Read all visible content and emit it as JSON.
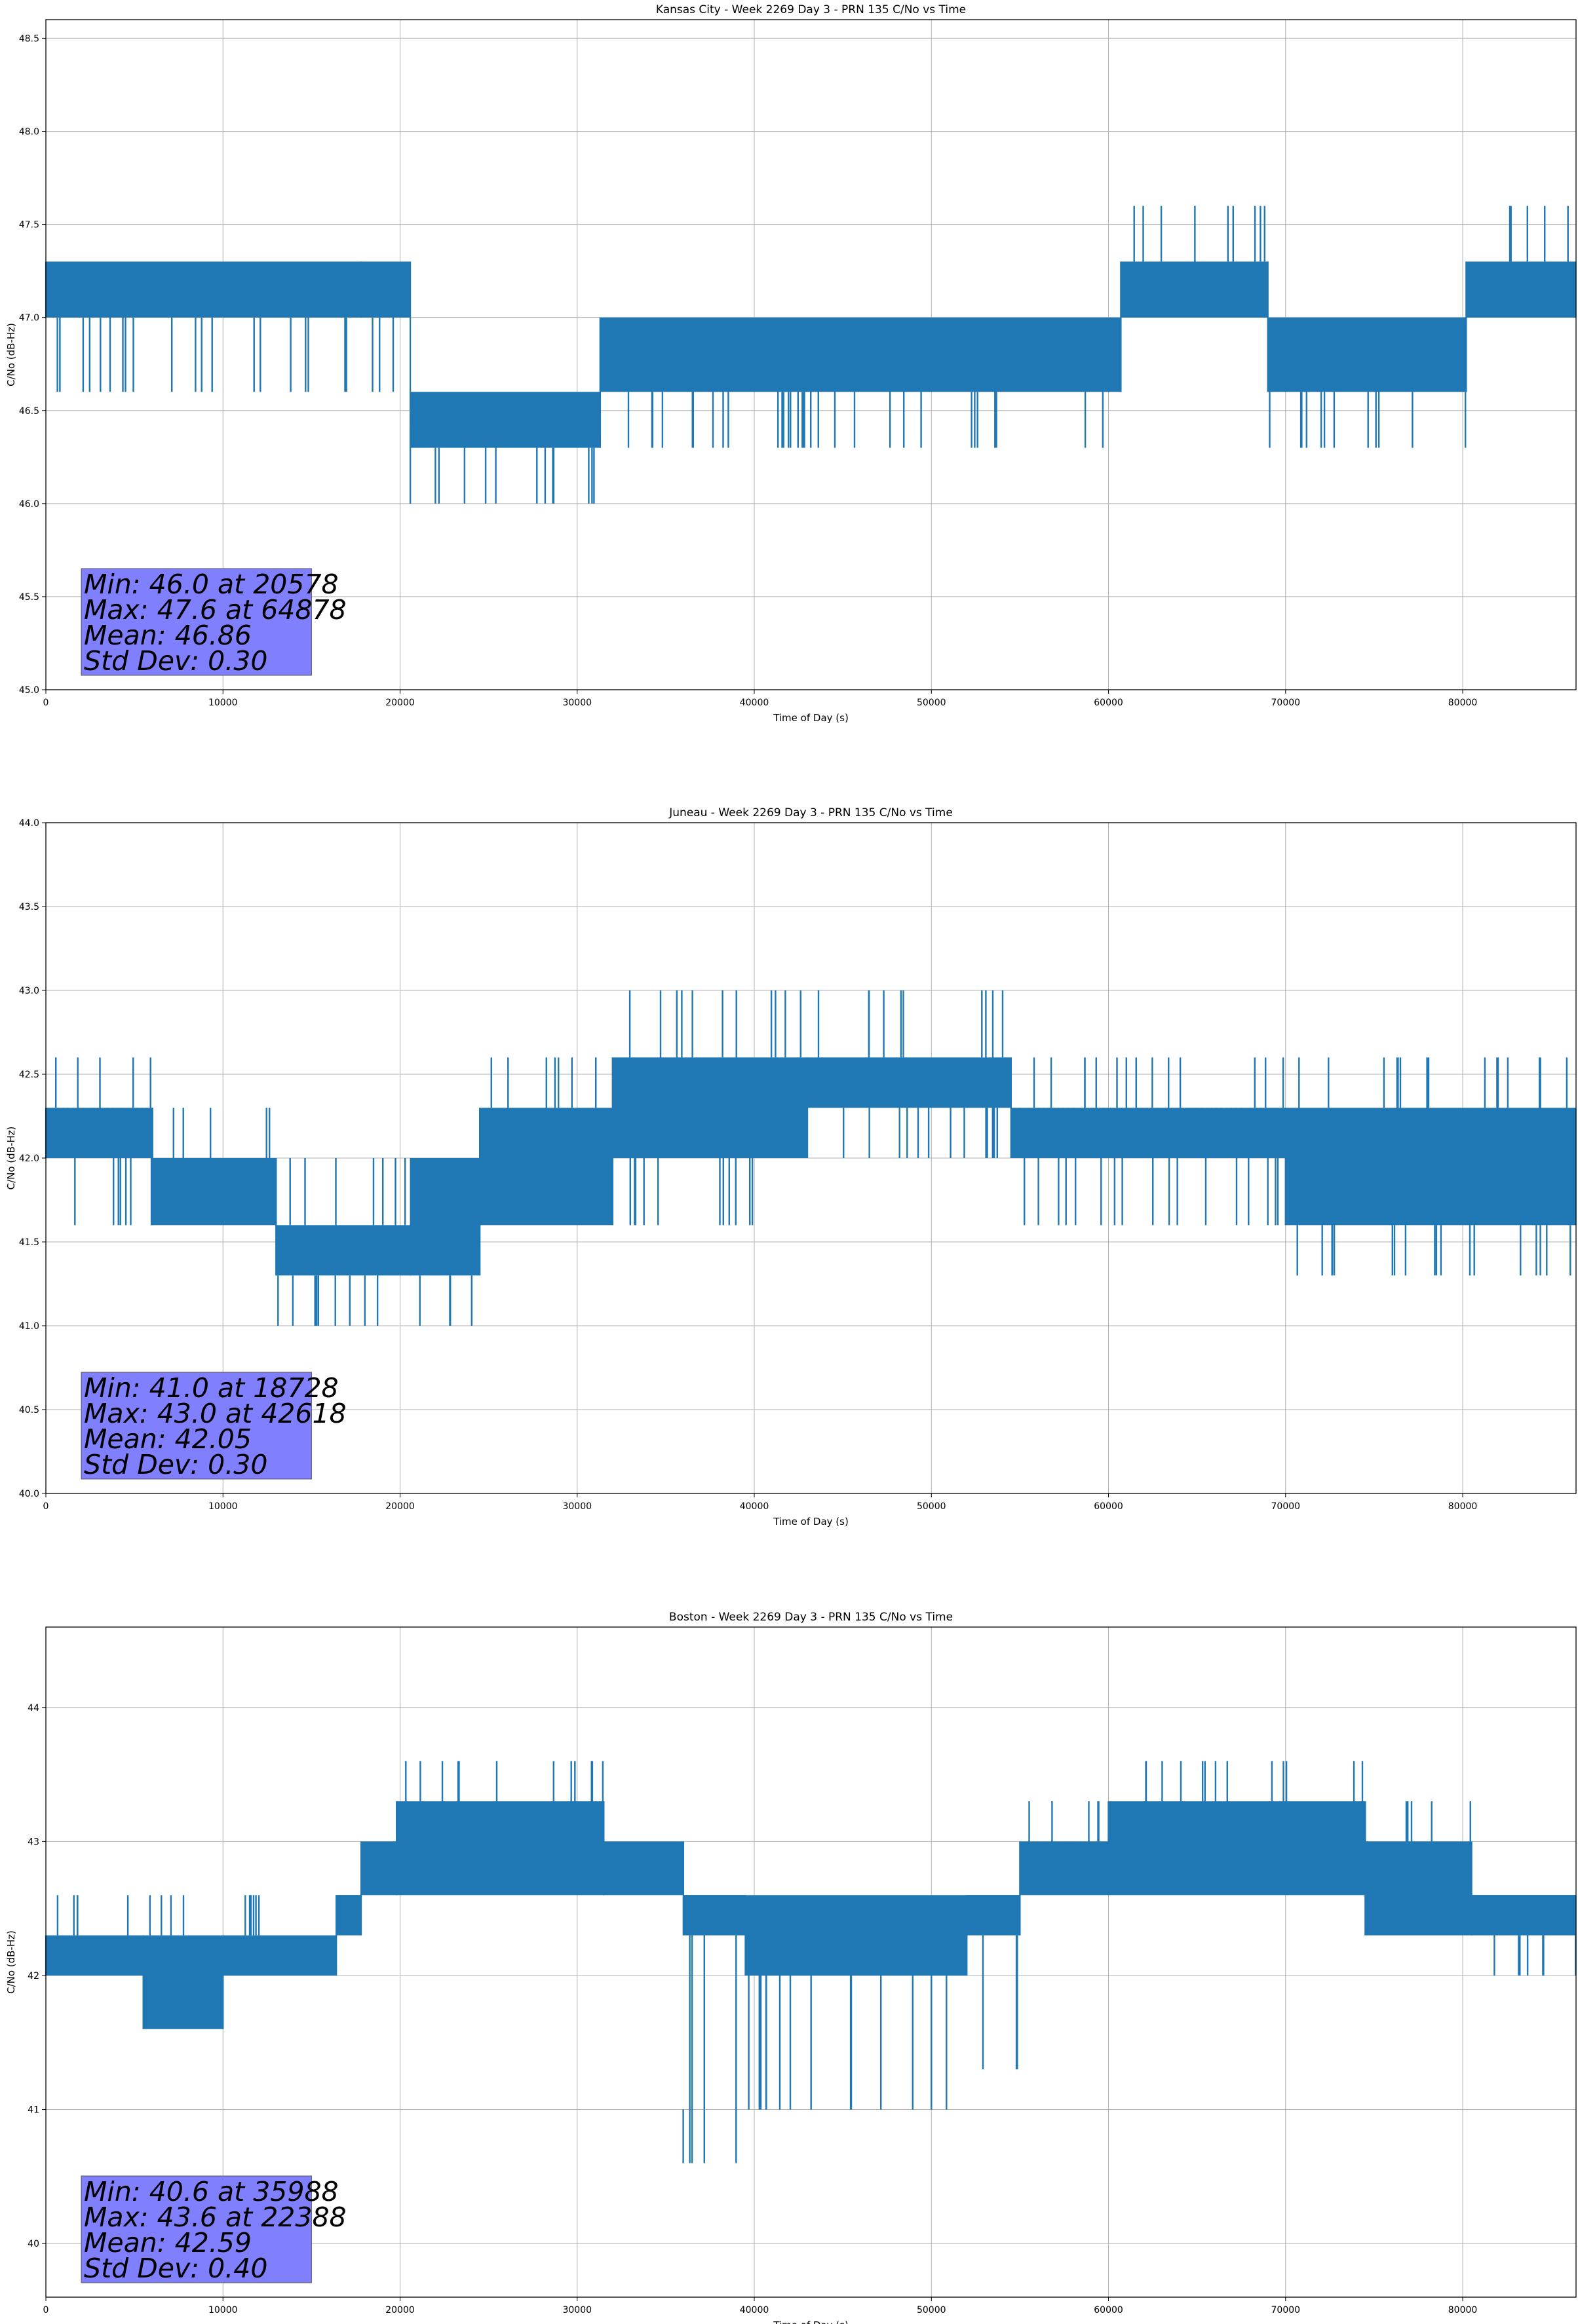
{
  "series_color": "#1f77b4",
  "statbox_color": "#8080ff",
  "chart_data": [
    {
      "type": "line",
      "title": "Kansas City - Week 2269 Day 3 - PRN 135 C/No vs Time",
      "xlabel": "Time of Day (s)",
      "ylabel": "C/No (dB-Hz)",
      "xlim": [
        0,
        86400
      ],
      "ylim": [
        45.0,
        48.6
      ],
      "xticks": [
        0,
        10000,
        20000,
        30000,
        40000,
        50000,
        60000,
        70000,
        80000
      ],
      "xtick_labels": [
        "0",
        "10000",
        "20000",
        "30000",
        "40000",
        "50000",
        "60000",
        "70000",
        "80000"
      ],
      "yticks": [
        45.0,
        45.5,
        46.0,
        46.5,
        47.0,
        47.5,
        48.0,
        48.5
      ],
      "ytick_labels": [
        "45.0",
        "45.5",
        "46.0",
        "46.5",
        "47.0",
        "47.5",
        "48.0",
        "48.5"
      ],
      "grid": true,
      "segments": [
        {
          "x": [
            0,
            17800
          ],
          "levels": [
            47.0,
            47.3
          ],
          "low": 46.6
        },
        {
          "x": [
            17800,
            20578
          ],
          "levels": [
            47.0,
            47.3
          ],
          "low": 46.6
        },
        {
          "x": [
            20578,
            31300
          ],
          "levels": [
            46.3,
            46.6
          ],
          "low": 46.0
        },
        {
          "x": [
            31300,
            60700
          ],
          "levels": [
            46.6,
            47.0
          ],
          "low": 46.3
        },
        {
          "x": [
            60700,
            69000
          ],
          "levels": [
            47.0,
            47.3
          ],
          "high": 47.6
        },
        {
          "x": [
            69000,
            80200
          ],
          "levels": [
            46.6,
            47.0
          ],
          "low": 46.3
        },
        {
          "x": [
            80200,
            86400
          ],
          "levels": [
            47.0,
            47.3
          ],
          "high": 47.6
        }
      ],
      "stats": {
        "min_value": 46.0,
        "min_time": 20578,
        "max_value": 47.6,
        "max_time": 64878,
        "mean": 46.86,
        "std_dev": 0.3
      },
      "stats_lines": [
        "Min: 46.0 at 20578",
        "Max: 47.6 at 64878",
        "Mean: 46.86",
        "Std Dev: 0.30"
      ]
    },
    {
      "type": "line",
      "title": "Juneau - Week 2269 Day 3 - PRN 135 C/No vs Time",
      "xlabel": "Time of Day (s)",
      "ylabel": "C/No (dB-Hz)",
      "xlim": [
        0,
        86400
      ],
      "ylim": [
        40.0,
        44.0
      ],
      "xticks": [
        0,
        10000,
        20000,
        30000,
        40000,
        50000,
        60000,
        70000,
        80000
      ],
      "xtick_labels": [
        "0",
        "10000",
        "20000",
        "30000",
        "40000",
        "50000",
        "60000",
        "70000",
        "80000"
      ],
      "yticks": [
        40.0,
        40.5,
        41.0,
        41.5,
        42.0,
        42.5,
        43.0,
        43.5,
        44.0
      ],
      "ytick_labels": [
        "40.0",
        "40.5",
        "41.0",
        "41.5",
        "42.0",
        "42.5",
        "43.0",
        "43.5",
        "44.0"
      ],
      "grid": true,
      "segments": [
        {
          "x": [
            0,
            6000
          ],
          "levels": [
            42.0,
            42.3
          ],
          "low": 41.6,
          "high": 42.6
        },
        {
          "x": [
            6000,
            13000
          ],
          "levels": [
            41.6,
            42.0
          ],
          "high": 42.3
        },
        {
          "x": [
            13000,
            20600
          ],
          "levels": [
            41.3,
            41.6
          ],
          "high": 42.0,
          "low": 41.0
        },
        {
          "x": [
            20600,
            24500
          ],
          "levels": [
            41.3,
            42.0
          ],
          "low": 41.0
        },
        {
          "x": [
            24500,
            32000
          ],
          "levels": [
            41.6,
            42.3
          ],
          "high": 42.6
        },
        {
          "x": [
            32000,
            43000
          ],
          "levels": [
            42.0,
            42.6
          ],
          "low": 41.6,
          "high": 43.0
        },
        {
          "x": [
            43000,
            54500
          ],
          "levels": [
            42.3,
            42.6
          ],
          "low": 42.0,
          "high": 43.0
        },
        {
          "x": [
            54500,
            70000
          ],
          "levels": [
            42.0,
            42.3
          ],
          "low": 41.6,
          "high": 42.6
        },
        {
          "x": [
            70000,
            86400
          ],
          "levels": [
            41.6,
            42.3
          ],
          "low": 41.3,
          "high": 42.6
        }
      ],
      "stats": {
        "min_value": 41.0,
        "min_time": 18728,
        "max_value": 43.0,
        "max_time": 42618,
        "mean": 42.05,
        "std_dev": 0.3
      },
      "stats_lines": [
        "Min: 41.0 at 18728",
        "Max: 43.0 at 42618",
        "Mean: 42.05",
        "Std Dev: 0.30"
      ]
    },
    {
      "type": "line",
      "title": "Boston - Week 2269 Day 3 - PRN 135 C/No vs Time",
      "xlabel": "Time of Day (s)",
      "ylabel": "C/No (dB-Hz)",
      "xlim": [
        0,
        86400
      ],
      "ylim": [
        39.6,
        44.6
      ],
      "xticks": [
        0,
        10000,
        20000,
        30000,
        40000,
        50000,
        60000,
        70000,
        80000
      ],
      "xtick_labels": [
        "0",
        "10000",
        "20000",
        "30000",
        "40000",
        "50000",
        "60000",
        "70000",
        "80000"
      ],
      "yticks": [
        40,
        41,
        42,
        43,
        44
      ],
      "ytick_labels": [
        "40",
        "41",
        "42",
        "43",
        "44"
      ],
      "grid": true,
      "segments": [
        {
          "x": [
            0,
            5500
          ],
          "levels": [
            42.0,
            42.3
          ],
          "high": 42.6
        },
        {
          "x": [
            5500,
            10000
          ],
          "levels": [
            41.6,
            42.3
          ],
          "high": 42.6
        },
        {
          "x": [
            10000,
            16400
          ],
          "levels": [
            42.0,
            42.3
          ],
          "high": 42.6
        },
        {
          "x": [
            16400,
            17800
          ],
          "levels": [
            42.3,
            42.6
          ]
        },
        {
          "x": [
            17800,
            19800
          ],
          "levels": [
            42.6,
            43.0
          ]
        },
        {
          "x": [
            19800,
            31500
          ],
          "levels": [
            42.6,
            43.3
          ],
          "high": 43.6
        },
        {
          "x": [
            31500,
            36000
          ],
          "levels": [
            42.6,
            43.0
          ]
        },
        {
          "x": [
            36000,
            39500
          ],
          "levels": [
            42.3,
            42.6
          ],
          "low": 40.6
        },
        {
          "x": [
            39500,
            52000
          ],
          "levels": [
            42.0,
            42.6
          ],
          "low": 41.0
        },
        {
          "x": [
            52000,
            55000
          ],
          "levels": [
            42.3,
            42.6
          ],
          "low": 41.3
        },
        {
          "x": [
            55000,
            60000
          ],
          "levels": [
            42.6,
            43.0
          ],
          "high": 43.3
        },
        {
          "x": [
            60000,
            74500
          ],
          "levels": [
            42.6,
            43.3
          ],
          "high": 43.6
        },
        {
          "x": [
            74500,
            80500
          ],
          "levels": [
            42.3,
            43.0
          ],
          "high": 43.3
        },
        {
          "x": [
            80500,
            86400
          ],
          "levels": [
            42.3,
            42.6
          ],
          "low": 42.0
        }
      ],
      "stats": {
        "min_value": 40.6,
        "min_time": 35988,
        "max_value": 43.6,
        "max_time": 22388,
        "mean": 42.59,
        "std_dev": 0.4
      },
      "stats_lines": [
        "Min: 40.6 at 35988",
        "Max: 43.6 at 22388",
        "Mean: 42.59",
        "Std Dev: 0.40"
      ]
    }
  ]
}
